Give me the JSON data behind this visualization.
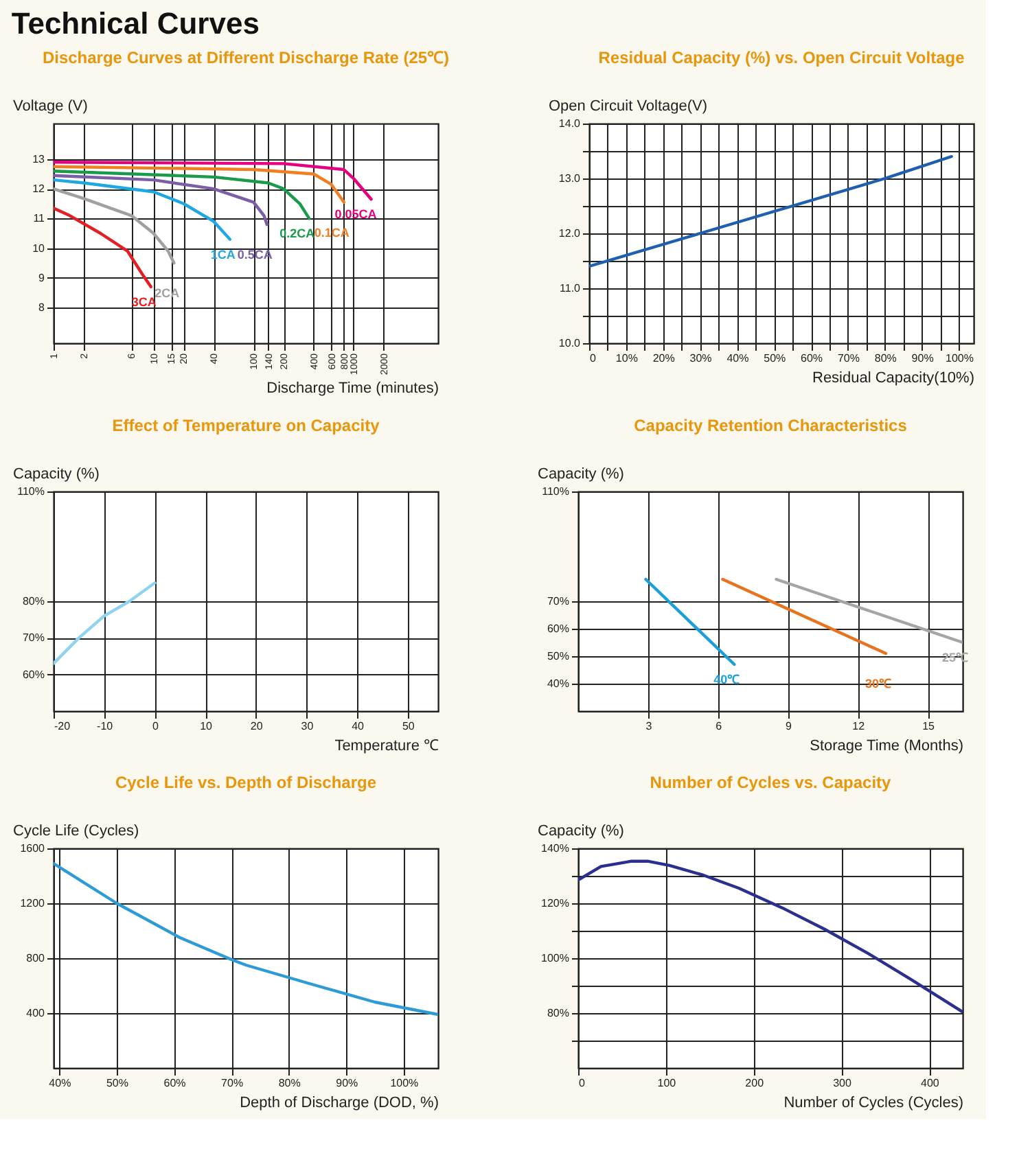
{
  "chart_data": [
    {
      "type": "other",
      "title": "Technical Curves"
    },
    {
      "type": "line",
      "title": "Discharge Curves at Different Discharge Rate (25℃)",
      "xlabel": "Discharge Time (minutes)",
      "ylabel": "Voltage (V)",
      "log": "x",
      "grid": true,
      "xlim": [
        1,
        7000
      ],
      "xticks": [
        1,
        2,
        6,
        10,
        15,
        20,
        40,
        100,
        140,
        200,
        400,
        600,
        800,
        1000,
        2000
      ],
      "ylim": [
        6.8,
        14.2
      ],
      "yticks": [
        8,
        9,
        10,
        11,
        12,
        13
      ],
      "series": [
        {
          "name": "3CA",
          "color": "#e31e24",
          "x": [
            1,
            1.45,
            2.95,
            5.5,
            7.8,
            9.4
          ],
          "values": [
            11.35,
            11.1,
            10.5,
            9.9,
            9.1,
            8.7
          ]
        },
        {
          "name": "2CA",
          "color": "#a0a0a0",
          "x": [
            1,
            1.9,
            6,
            10,
            14,
            16
          ],
          "values": [
            12.0,
            11.7,
            11.1,
            10.5,
            9.9,
            9.5
          ]
        },
        {
          "name": "1CA",
          "color": "#1ea7e1",
          "x": [
            1,
            2,
            10,
            20,
            40,
            58
          ],
          "values": [
            12.3,
            12.2,
            11.9,
            11.5,
            10.9,
            10.3
          ]
        },
        {
          "name": "0.5CA",
          "color": "#7b5ea7",
          "x": [
            1,
            10,
            40,
            100,
            127,
            136
          ],
          "values": [
            12.45,
            12.3,
            12.0,
            11.55,
            11.1,
            10.8
          ]
        },
        {
          "name": "0.2CA",
          "color": "#1a9a4b",
          "x": [
            1,
            40,
            140,
            200,
            290,
            360
          ],
          "values": [
            12.6,
            12.4,
            12.2,
            12.0,
            11.5,
            11.0
          ]
        },
        {
          "name": "0.1CA",
          "color": "#f07f23",
          "x": [
            1,
            100,
            400,
            600,
            800
          ],
          "values": [
            12.75,
            12.65,
            12.5,
            12.15,
            11.55
          ]
        },
        {
          "name": "0.05CA",
          "color": "#e4007f",
          "x": [
            1,
            200,
            800,
            1000,
            1500
          ],
          "values": [
            12.9,
            12.85,
            12.65,
            12.35,
            11.65
          ]
        }
      ]
    },
    {
      "type": "line",
      "title": "Residual Capacity (%) vs. Open Circuit Voltage",
      "xlabel": "Residual Capacity(10%)",
      "ylabel": "Open Circuit Voltage(V)",
      "grid": true,
      "xlim": [
        0,
        104
      ],
      "xticks": [
        0,
        {
          "value": 5,
          "label": null
        },
        {
          "value": 10,
          "label": "10%"
        },
        {
          "value": 15,
          "label": null
        },
        {
          "value": 20,
          "label": "20%"
        },
        {
          "value": 25,
          "label": null
        },
        {
          "value": 30,
          "label": "30%"
        },
        {
          "value": 35,
          "label": null
        },
        {
          "value": 40,
          "label": "40%"
        },
        {
          "value": 45,
          "label": null
        },
        {
          "value": 50,
          "label": "50%"
        },
        {
          "value": 55,
          "label": null
        },
        {
          "value": 60,
          "label": "60%"
        },
        {
          "value": 65,
          "label": null
        },
        {
          "value": 70,
          "label": "70%"
        },
        {
          "value": 75,
          "label": null
        },
        {
          "value": 80,
          "label": "80%"
        },
        {
          "value": 85,
          "label": null
        },
        {
          "value": 90,
          "label": "90%"
        },
        {
          "value": 95,
          "label": null
        },
        {
          "value": 100,
          "label": "100%"
        }
      ],
      "ylim": [
        10,
        14
      ],
      "yticks": [
        {
          "value": 10,
          "label": "10.0"
        },
        {
          "value": 10.5,
          "label": null
        },
        {
          "value": 11,
          "label": "11.0"
        },
        {
          "value": 11.5,
          "label": null
        },
        {
          "value": 12,
          "label": "12.0"
        },
        {
          "value": 12.5,
          "label": null
        },
        {
          "value": 13,
          "label": "13.0"
        },
        {
          "value": 13.5,
          "label": null
        },
        {
          "value": 14,
          "label": "14.0"
        }
      ],
      "series": [
        {
          "color": "#1f5fb0",
          "x": [
            0,
            30,
            80,
            98
          ],
          "values": [
            11.4,
            12.0,
            13.0,
            13.4
          ]
        }
      ]
    },
    {
      "type": "line",
      "title": "Effect of Temperature on Capacity",
      "xlabel": "Temperature ℃",
      "ylabel": "Capacity (%)",
      "grid": true,
      "xlim": [
        -20,
        56
      ],
      "xticks": [
        -20,
        -10,
        0,
        10,
        20,
        30,
        40,
        50
      ],
      "ylim": [
        50,
        110
      ],
      "yticks": [
        {
          "value": 60,
          "label": "60%"
        },
        {
          "value": 70,
          "label": "70%"
        },
        {
          "value": 80,
          "label": "80%"
        },
        {
          "value": 110,
          "label": "110%"
        }
      ],
      "series": [
        {
          "color": "#8fd3f0",
          "x": [
            -20,
            -15,
            -10,
            -5,
            0
          ],
          "values": [
            63,
            70,
            76,
            80,
            85
          ]
        }
      ]
    },
    {
      "type": "line",
      "title": "Capacity Retention Characteristics",
      "xlabel": "Storage Time (Months)",
      "ylabel": "Capacity (%)",
      "grid": true,
      "xlim": [
        0,
        16.5
      ],
      "xticks": [
        3,
        6,
        9,
        12,
        15
      ],
      "ylim": [
        30,
        110
      ],
      "yticks": [
        {
          "value": 40,
          "label": "40%"
        },
        {
          "value": 50,
          "label": "50%"
        },
        {
          "value": 60,
          "label": "60%"
        },
        {
          "value": 70,
          "label": "70%"
        },
        {
          "value": 110,
          "label": "110%"
        }
      ],
      "series": [
        {
          "name": "40℃",
          "color": "#1a9fd9",
          "x": [
            2.9,
            6.7
          ],
          "values": [
            78,
            47
          ]
        },
        {
          "name": "30℃",
          "color": "#e8731e",
          "x": [
            6.2,
            13.2
          ],
          "values": [
            78,
            51
          ]
        },
        {
          "name": "25℃",
          "color": "#a5a5a5",
          "x": [
            8.5,
            16.5
          ],
          "values": [
            78,
            55
          ]
        }
      ]
    },
    {
      "type": "line",
      "title": "Cycle Life vs. Depth of Discharge",
      "xlabel": "Depth of Discharge (DOD, %)",
      "ylabel": "Cycle Life (Cycles)",
      "grid": true,
      "xlim": [
        39,
        106
      ],
      "xticks": [
        {
          "value": 40,
          "label": "40%"
        },
        {
          "value": 50,
          "label": "50%"
        },
        {
          "value": 60,
          "label": "60%"
        },
        {
          "value": 70,
          "label": "70%"
        },
        {
          "value": 80,
          "label": "80%"
        },
        {
          "value": 90,
          "label": "90%"
        },
        {
          "value": 100,
          "label": "100%"
        }
      ],
      "ylim": [
        0,
        1600
      ],
      "yticks": [
        400,
        800,
        1200,
        1600
      ],
      "series": [
        {
          "color": "#2e9bd6",
          "x": [
            39,
            50,
            61,
            70,
            72.5,
            84,
            95,
            106
          ],
          "values": [
            1490,
            1200,
            950,
            790,
            750,
            610,
            480,
            390
          ]
        }
      ]
    },
    {
      "type": "line",
      "title": "Number of Cycles vs. Capacity",
      "xlabel": "Number of Cycles (Cycles)",
      "ylabel": "Capacity (%)",
      "grid": true,
      "xlim": [
        0,
        438
      ],
      "xticks": [
        0,
        100,
        200,
        300,
        400
      ],
      "ylim": [
        60,
        140
      ],
      "yticks": [
        {
          "value": 70,
          "label": null
        },
        {
          "value": 80,
          "label": "80%"
        },
        {
          "value": 90,
          "label": null
        },
        {
          "value": 100,
          "label": "100%"
        },
        {
          "value": 110,
          "label": null
        },
        {
          "value": 120,
          "label": "120%"
        },
        {
          "value": 130,
          "label": null
        },
        {
          "value": 140,
          "label": "140%"
        }
      ],
      "series": [
        {
          "color": "#2b2f8f",
          "x": [
            0,
            26,
            60,
            80,
            104,
            143,
            183,
            232,
            281,
            330,
            379,
            438
          ],
          "values": [
            128.5,
            133.4,
            135.3,
            135.3,
            133.8,
            130.2,
            125.5,
            118.4,
            110.5,
            101.8,
            92.3,
            80.4
          ]
        }
      ]
    }
  ]
}
